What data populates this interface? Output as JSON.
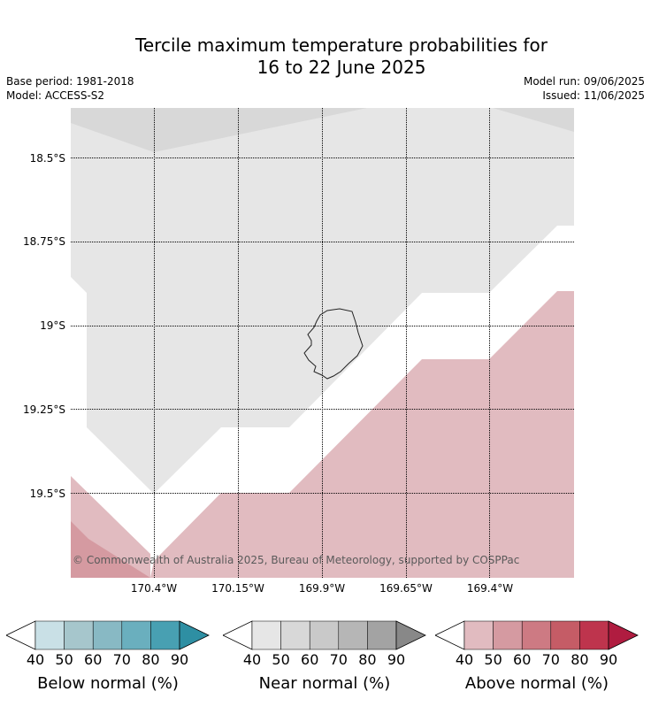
{
  "title_line1": "Tercile maximum temperature probabilities for",
  "title_line2": "16 to 22 June 2025",
  "base_period": "Base period: 1981-2018",
  "model": "Model: ACCESS-S2",
  "model_run": "Model run: 09/06/2025",
  "issued": "Issued: 11/06/2025",
  "copyright": "© Commonwealth of Australia 2025, Bureau of Meteorology, supported by COSPPac",
  "lat_labels": [
    "18.5°S",
    "18.75°S",
    "19°S",
    "19.25°S",
    "19.5°S"
  ],
  "lon_labels": [
    "170.4°W",
    "170.15°W",
    "169.9°W",
    "169.65°W",
    "169.4°W"
  ],
  "legends": [
    {
      "label": "Below normal (%)",
      "ticks": [
        "40",
        "50",
        "60",
        "70",
        "80",
        "90"
      ],
      "colors": [
        "#ffffff",
        "#c9e0e6",
        "#a6c6cc",
        "#88b9c4",
        "#6aafbe",
        "#48a0b2",
        "#2e8fa3"
      ]
    },
    {
      "label": "Near normal (%)",
      "ticks": [
        "40",
        "50",
        "60",
        "70",
        "80",
        "90"
      ],
      "colors": [
        "#ffffff",
        "#e6e6e6",
        "#d8d8d8",
        "#c9c9c9",
        "#b6b6b6",
        "#a3a3a3",
        "#888888"
      ]
    },
    {
      "label": "Above normal (%)",
      "ticks": [
        "40",
        "50",
        "60",
        "70",
        "80",
        "90"
      ],
      "colors": [
        "#ffffff",
        "#e1bbc0",
        "#d59aa1",
        "#cd7a83",
        "#c55c66",
        "#be344d",
        "#b01c40"
      ]
    }
  ]
}
